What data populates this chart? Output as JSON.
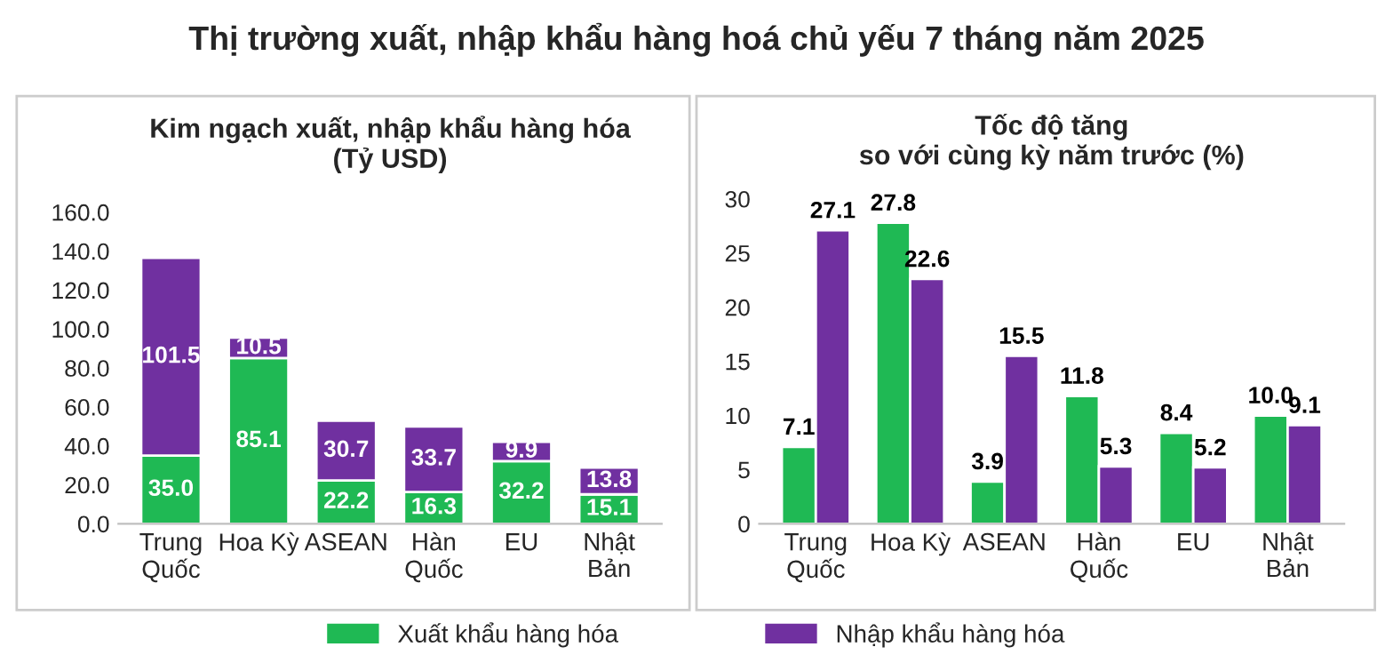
{
  "chart_data": [
    {
      "type": "bar",
      "title": "Kim ngạch xuất, nhập khẩu hàng hóa\n(Tỷ USD)",
      "annotations": [
        "Thị trường xuất, nhập khẩu hàng hoá chủ yếu 7 tháng năm 2025"
      ],
      "categories": [
        "Trung\nQuốc",
        "Hoa Kỳ",
        "ASEAN",
        "Hàn\nQuốc",
        "EU",
        "Nhật\nBản"
      ],
      "stacked": true,
      "series": [
        {
          "name": "Xuất khẩu hàng hóa",
          "color": "#1fb954",
          "values": [
            35.0,
            85.1,
            22.2,
            16.3,
            32.2,
            15.1
          ],
          "value_labels": [
            "35.0",
            "85.1",
            "22.2",
            "16.3",
            "32.2",
            "15.1"
          ]
        },
        {
          "name": "Nhập khẩu hàng hóa",
          "color": "#7030a0",
          "values": [
            101.5,
            10.5,
            30.7,
            33.7,
            9.9,
            13.8
          ],
          "value_labels": [
            "101.5",
            "10.5",
            "30.7",
            "33.7",
            "9.9",
            "13.8"
          ]
        }
      ],
      "ylim": [
        0,
        160
      ],
      "yticks": [
        {
          "value": 0,
          "label": "0.0"
        },
        {
          "value": 20,
          "label": "20.0"
        },
        {
          "value": 40,
          "label": "40.0"
        },
        {
          "value": 60,
          "label": "60.0"
        },
        {
          "value": 80,
          "label": "80.0"
        },
        {
          "value": 100,
          "label": "100.0"
        },
        {
          "value": 120,
          "label": "120.0"
        },
        {
          "value": 140,
          "label": "140.0"
        },
        {
          "value": 160,
          "label": "160.0"
        }
      ],
      "legend": "bottom"
    },
    {
      "type": "bar",
      "title": "Tốc độ tăng\nso với cùng kỳ năm trước (%)",
      "categories": [
        "Trung\nQuốc",
        "Hoa Kỳ",
        "ASEAN",
        "Hàn\nQuốc",
        "EU",
        "Nhật\nBản"
      ],
      "series": [
        {
          "color": "#1fb954",
          "values": [
            7.1,
            27.8,
            3.9,
            11.8,
            8.4,
            10.0
          ],
          "value_labels": [
            "7.1",
            "27.8",
            "3.9",
            "11.8",
            "8.4",
            "10.0"
          ]
        },
        {
          "color": "#7030a0",
          "values": [
            27.1,
            22.6,
            15.5,
            5.3,
            5.2,
            9.1
          ],
          "value_labels": [
            "27.1",
            "22.6",
            "15.5",
            "5.3",
            "5.2",
            "9.1"
          ]
        }
      ],
      "ylim": [
        0,
        30
      ],
      "yticks": [
        0,
        5,
        10,
        15,
        20,
        25,
        30
      ]
    }
  ]
}
